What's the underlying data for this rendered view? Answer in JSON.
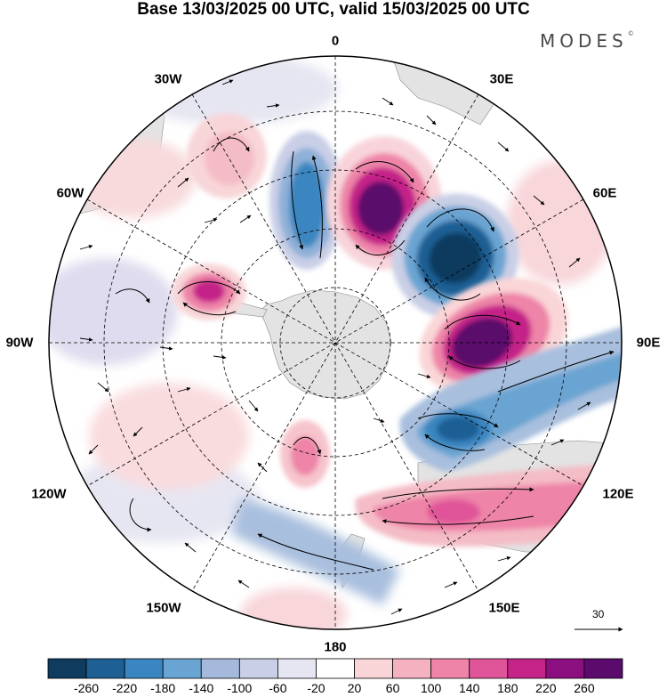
{
  "header": {
    "title": "Base 13/03/2025 00 UTC, valid 15/03/2025 00 UTC"
  },
  "brand": {
    "logo_text": "MODES",
    "mark": "©"
  },
  "map": {
    "projection": "south-polar-stereographic",
    "longitude_labels": {
      "top": "0",
      "bottom": "180",
      "left": "90W",
      "right": "90E",
      "upper_left_a": "30W",
      "upper_left_b": "60W",
      "upper_right_a": "30E",
      "upper_right_b": "60E",
      "lower_left_a": "120W",
      "lower_left_b": "150W",
      "lower_right_a": "120E",
      "lower_right_b": "150E"
    },
    "wind_reference_vector": "30"
  },
  "colorbar": {
    "colors": [
      "#0e3b5e",
      "#1e5f94",
      "#3a86c0",
      "#6aa4d2",
      "#a5b9dc",
      "#c9cfe6",
      "#e6e6f2",
      "#ffffff",
      "#fad5d7",
      "#f4b1c0",
      "#ee84a8",
      "#e0559a",
      "#c42488",
      "#8b0f7e",
      "#5a0b6b"
    ],
    "tick_labels": [
      "-260",
      "-220",
      "-180",
      "-140",
      "-100",
      "-60",
      "-20",
      "20",
      "60",
      "100",
      "140",
      "180",
      "220",
      "260"
    ]
  }
}
